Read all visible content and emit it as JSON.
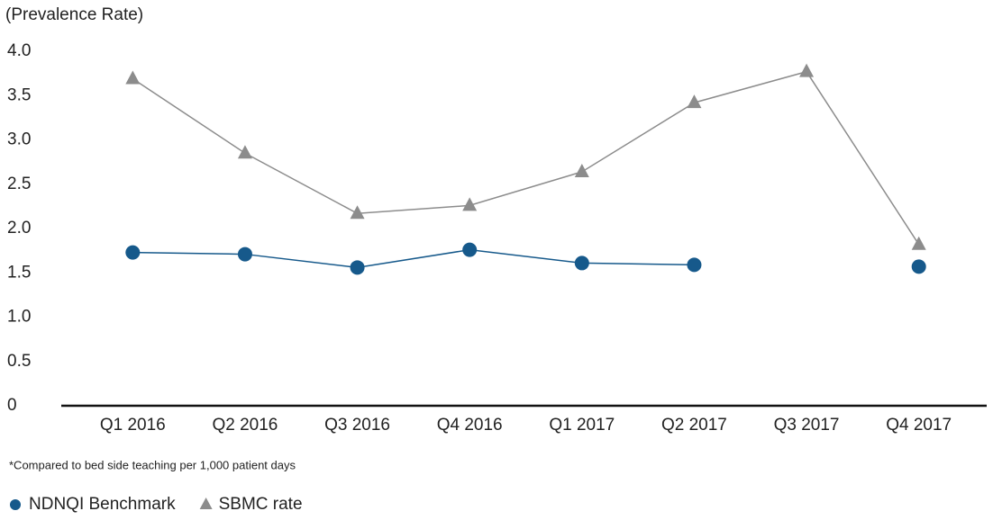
{
  "chart_data": {
    "type": "line",
    "y_label": "(Prevalence Rate)",
    "footnote": "*Compared to bed side teaching per 1,000 patient days",
    "categories": [
      "Q1 2016",
      "Q2 2016",
      "Q3 2016",
      "Q4 2016",
      "Q1 2017",
      "Q2 2017",
      "Q3 2017",
      "Q4 2017"
    ],
    "series": [
      {
        "name": "NDNQI Benchmark",
        "color": "#16598b",
        "marker": "circle",
        "values": [
          1.73,
          1.71,
          1.56,
          1.76,
          1.61,
          1.59,
          null,
          1.57
        ]
      },
      {
        "name": "SBMC rate",
        "color": "#8c8c8c",
        "marker": "triangle",
        "values": [
          3.69,
          2.85,
          2.17,
          2.26,
          2.64,
          3.42,
          3.77,
          1.82
        ]
      }
    ],
    "ylim": [
      0,
      4
    ],
    "yticks": [
      0,
      0.5,
      {
        "value": 1,
        "label": "1.0"
      },
      1.5,
      {
        "value": 2,
        "label": "2.0"
      },
      2.5,
      {
        "value": 3,
        "label": "3.0"
      },
      3.5,
      {
        "value": 4,
        "label": "4.0"
      }
    ],
    "grid": false,
    "legend": "bottom-left"
  }
}
